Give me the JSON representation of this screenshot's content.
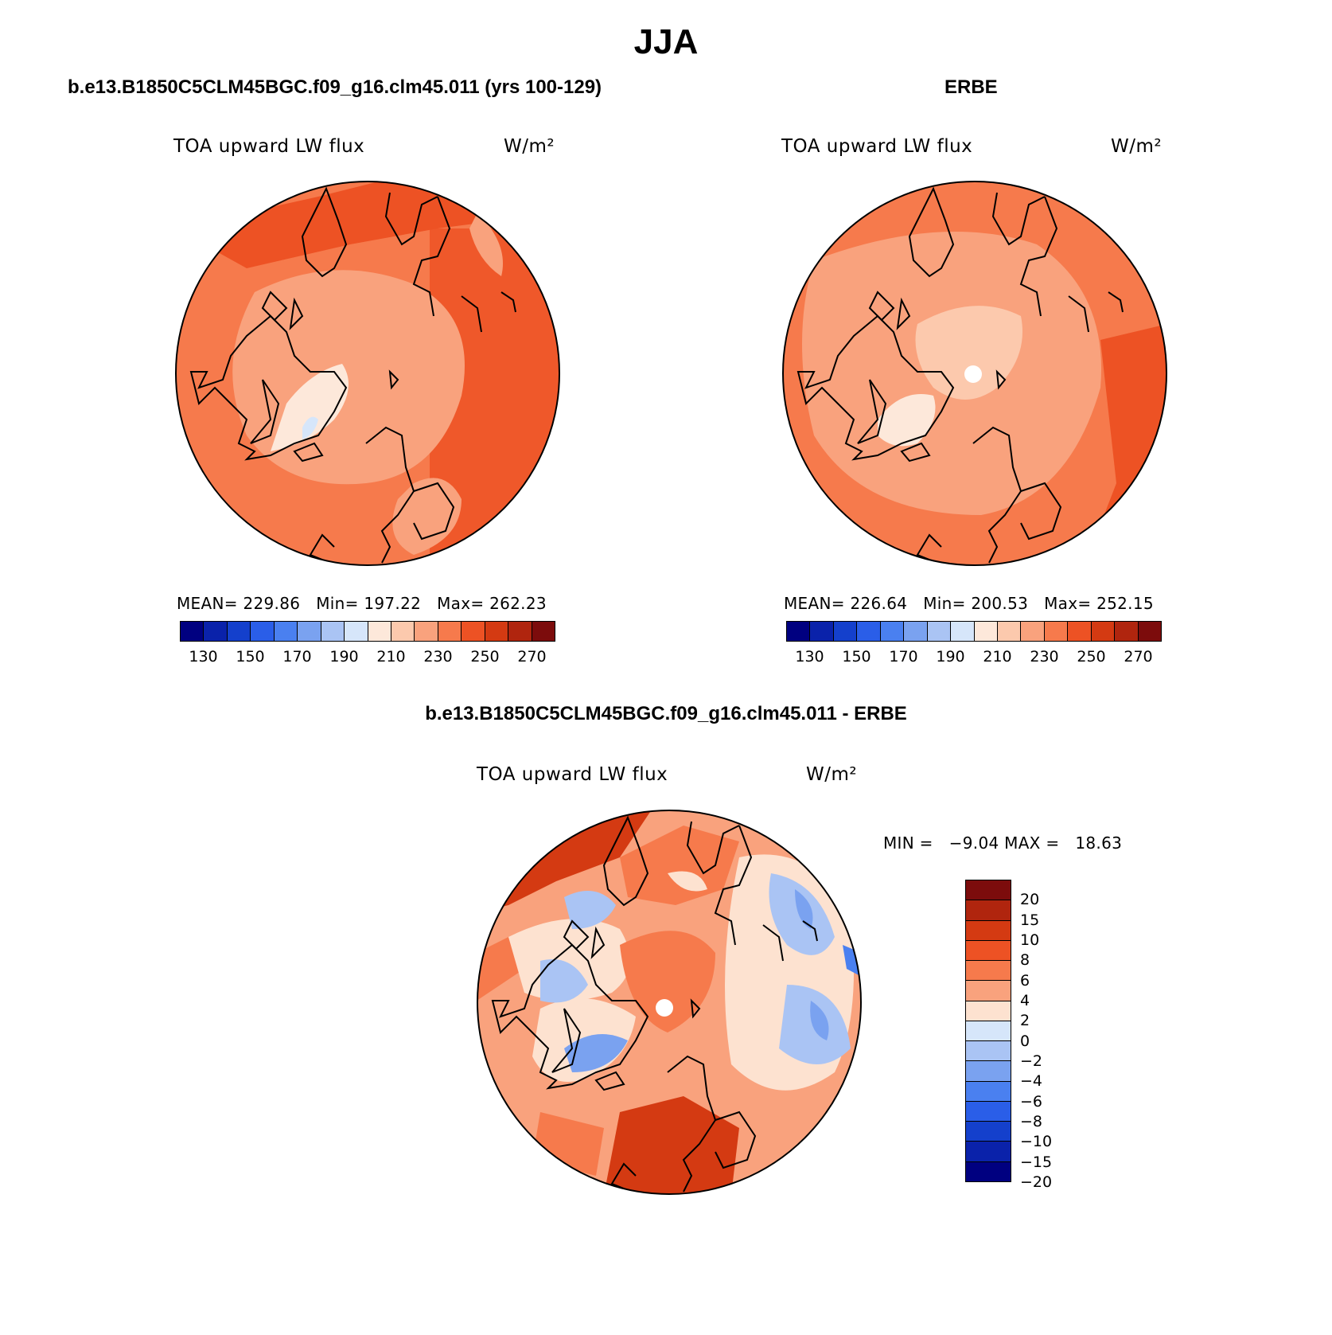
{
  "title": "JJA",
  "panels": {
    "model": {
      "heading": "b.e13.B1850C5CLM45BGC.f09_g16.clm45.011 (yrs 100-129)",
      "variable": "TOA upward LW flux",
      "units": "W/m²",
      "mean_label": "MEAN=",
      "mean": "229.86",
      "min_label": "Min=",
      "min": "197.22",
      "max_label": "Max=",
      "max": "262.23"
    },
    "obs": {
      "heading": "ERBE",
      "variable": "TOA upward LW flux",
      "units": "W/m²",
      "mean_label": "MEAN=",
      "mean": "226.64",
      "min_label": "Min=",
      "min": "200.53",
      "max_label": "Max=",
      "max": "252.15"
    },
    "diff": {
      "heading": "b.e13.B1850C5CLM45BGC.f09_g16.clm45.011 - ERBE",
      "variable": "TOA upward LW flux",
      "units": "W/m²",
      "minmax": "MIN =   −9.04 MAX =   18.63"
    }
  },
  "abs_colorbar": {
    "colors": [
      "#000080",
      "#0a22aa",
      "#1440cc",
      "#2a5ee8",
      "#4a80f0",
      "#7aa2f0",
      "#aac4f4",
      "#d6e6fa",
      "#fde8da",
      "#fcc9ad",
      "#f9a27d",
      "#f67a4c",
      "#ed5224",
      "#d43a12",
      "#b0250e",
      "#7c0c0c"
    ],
    "tick_labels": [
      "130",
      "150",
      "170",
      "190",
      "210",
      "230",
      "250",
      "270"
    ]
  },
  "diff_colorbar": {
    "colors": [
      "#7c0c0c",
      "#b0250e",
      "#d43a12",
      "#ed5224",
      "#f67a4c",
      "#f9a27d",
      "#fde2d0",
      "#d6e6fa",
      "#aac4f4",
      "#7aa2f0",
      "#4a80f0",
      "#2a5ee8",
      "#1440cc",
      "#0a22aa",
      "#000080"
    ],
    "tick_labels": [
      "20",
      "15",
      "10",
      "8",
      "6",
      "4",
      "2",
      "0",
      "−2",
      "−4",
      "−6",
      "−8",
      "−10",
      "−15",
      "−20"
    ]
  }
}
